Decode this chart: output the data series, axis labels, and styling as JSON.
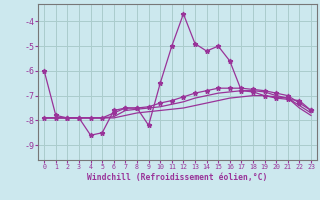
{
  "title": "",
  "xlabel": "Windchill (Refroidissement éolien,°C)",
  "bg_color": "#cce8ee",
  "grid_color": "#aacccc",
  "line_color": "#993399",
  "x": [
    0,
    1,
    2,
    3,
    4,
    5,
    6,
    7,
    8,
    9,
    10,
    11,
    12,
    13,
    14,
    15,
    16,
    17,
    18,
    19,
    20,
    21,
    22,
    23
  ],
  "line1": [
    -6.0,
    -7.8,
    -7.9,
    -7.9,
    -8.6,
    -8.5,
    -7.6,
    -7.5,
    -7.5,
    -8.2,
    -6.5,
    -5.0,
    -3.7,
    -4.9,
    -5.2,
    -5.0,
    -5.6,
    -6.8,
    -6.85,
    -7.0,
    -7.1,
    -7.15,
    -7.2,
    -7.6
  ],
  "line2": [
    -7.9,
    -7.9,
    -7.9,
    -7.9,
    -7.9,
    -7.9,
    -7.7,
    -7.5,
    -7.5,
    -7.45,
    -7.3,
    -7.2,
    -7.05,
    -6.9,
    -6.8,
    -6.7,
    -6.7,
    -6.7,
    -6.75,
    -6.8,
    -6.9,
    -7.0,
    -7.3,
    -7.6
  ],
  "line3": [
    -7.9,
    -7.9,
    -7.9,
    -7.9,
    -7.9,
    -7.9,
    -7.85,
    -7.6,
    -7.55,
    -7.5,
    -7.45,
    -7.35,
    -7.25,
    -7.1,
    -7.0,
    -6.9,
    -6.85,
    -6.8,
    -6.8,
    -6.85,
    -7.0,
    -7.1,
    -7.4,
    -7.7
  ],
  "line4": [
    -7.9,
    -7.9,
    -7.9,
    -7.9,
    -7.9,
    -7.9,
    -7.9,
    -7.8,
    -7.7,
    -7.65,
    -7.6,
    -7.55,
    -7.5,
    -7.4,
    -7.3,
    -7.2,
    -7.1,
    -7.05,
    -7.0,
    -7.0,
    -7.05,
    -7.1,
    -7.5,
    -7.8
  ],
  "ylim": [
    -9.6,
    -3.3
  ],
  "xlim": [
    -0.5,
    23.5
  ],
  "yticks": [
    -9,
    -8,
    -7,
    -6,
    -5,
    -4
  ],
  "xticks": [
    0,
    1,
    2,
    3,
    4,
    5,
    6,
    7,
    8,
    9,
    10,
    11,
    12,
    13,
    14,
    15,
    16,
    17,
    18,
    19,
    20,
    21,
    22,
    23
  ]
}
